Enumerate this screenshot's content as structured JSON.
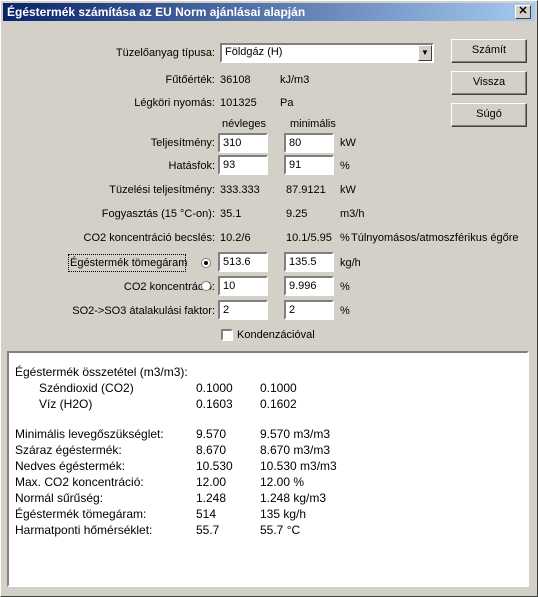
{
  "window": {
    "title": "Égéstermék számítása az EU Norm ajánlásai alapján",
    "close_glyph": "✕"
  },
  "fuel": {
    "label": "Tüzelőanyag típusa:",
    "selected": "Földgáz (H)"
  },
  "heating_value": {
    "label": "Fűtőérték:",
    "value": "36108",
    "unit": "kJ/m3"
  },
  "pressure": {
    "label": "Légköri nyomás:",
    "value": "101325",
    "unit": "Pa"
  },
  "columns": {
    "nominal": "névleges",
    "minimal": "minimális"
  },
  "rows": {
    "power": {
      "label": "Teljesítmény:",
      "nominal": "310",
      "minimal": "80",
      "unit": "kW"
    },
    "efficiency": {
      "label": "Hatásfok:",
      "nominal": "93",
      "minimal": "91",
      "unit": "%"
    },
    "firing_power": {
      "label": "Tüzelési teljesítmény:",
      "nominal": "333.333",
      "minimal": "87.9121",
      "unit": "kW"
    },
    "consumption": {
      "label": "Fogyasztás (15 °C-on):",
      "nominal": "35.1",
      "minimal": "9.25",
      "unit": "m3/h"
    },
    "co2_estimate": {
      "label": "CO2 koncentráció becslés:",
      "nominal": "10.2/6",
      "minimal": "10.1/5.95",
      "unit": "%",
      "note": "Túlnyomásos/atmoszférikus égőre"
    },
    "flue_mass": {
      "label": "Égéstermék tömegáram",
      "nominal": "513.6",
      "minimal": "135.5",
      "unit": "kg/h",
      "selected": true
    },
    "co2_conc": {
      "label": "CO2 koncentráció:",
      "nominal": "10",
      "minimal": "9.996",
      "unit": "%",
      "selected": false
    },
    "so2_factor": {
      "label": "SO2->SO3 átalakulási faktor:",
      "nominal": "2",
      "minimal": "2",
      "unit": "%"
    }
  },
  "condensing": {
    "label": "Kondenzációval",
    "checked": false
  },
  "buttons": {
    "calculate": "Számít",
    "back": "Vissza",
    "help": "Súgó"
  },
  "results": {
    "composition_title": "Égéstermék összetétel (m3/m3):",
    "composition": [
      {
        "name": "Széndioxid (CO2)",
        "nominal": "0.1000",
        "minimal": "0.1000"
      },
      {
        "name": "Víz (H2O)",
        "nominal": "0.1603",
        "minimal": "0.1602"
      }
    ],
    "lines": [
      {
        "name": "Minimális levegőszükséglet:",
        "nominal": "9.570",
        "minimal": "9.570 m3/m3"
      },
      {
        "name": "Száraz égéstermék:",
        "nominal": "8.670",
        "minimal": "8.670 m3/m3"
      },
      {
        "name": "Nedves égéstermék:",
        "nominal": "10.530",
        "minimal": "10.530 m3/m3"
      },
      {
        "name": "Max. CO2 koncentráció:",
        "nominal": "12.00",
        "minimal": "12.00 %"
      },
      {
        "name": "Normál sűrűség:",
        "nominal": "1.248",
        "minimal": "1.248 kg/m3"
      },
      {
        "name": "Égéstermék tömegáram:",
        "nominal": "514",
        "minimal": "135 kg/h"
      },
      {
        "name": "Harmatponti hőmérséklet:",
        "nominal": "55.7",
        "minimal": "55.7 °C"
      }
    ]
  }
}
